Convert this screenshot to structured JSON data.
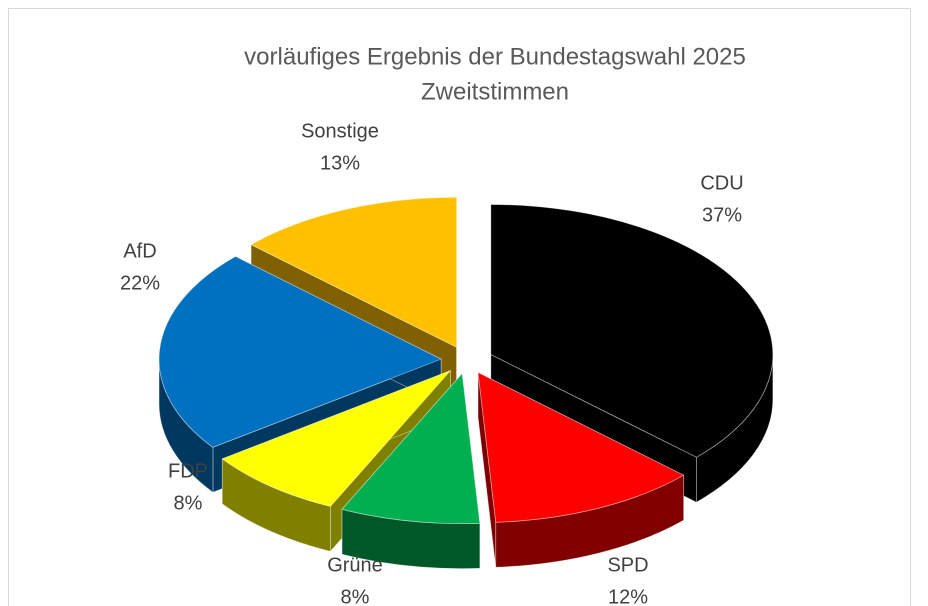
{
  "chart_data": {
    "type": "pie",
    "title": "vorläufiges Ergebnis der Bundestagswahl 2025",
    "subtitle": "Zweitstimmen",
    "categories": [
      "CDU",
      "SPD",
      "Grüne",
      "FDP",
      "AfD",
      "Sonstige"
    ],
    "values": [
      37,
      12,
      8,
      8,
      22,
      13
    ],
    "value_labels": [
      "37%",
      "12%",
      "8%",
      "8%",
      "22%",
      "13%"
    ],
    "colors": [
      "#000000",
      "#ff0000",
      "#00b050",
      "#ffff00",
      "#0070c0",
      "#ffc000"
    ]
  }
}
